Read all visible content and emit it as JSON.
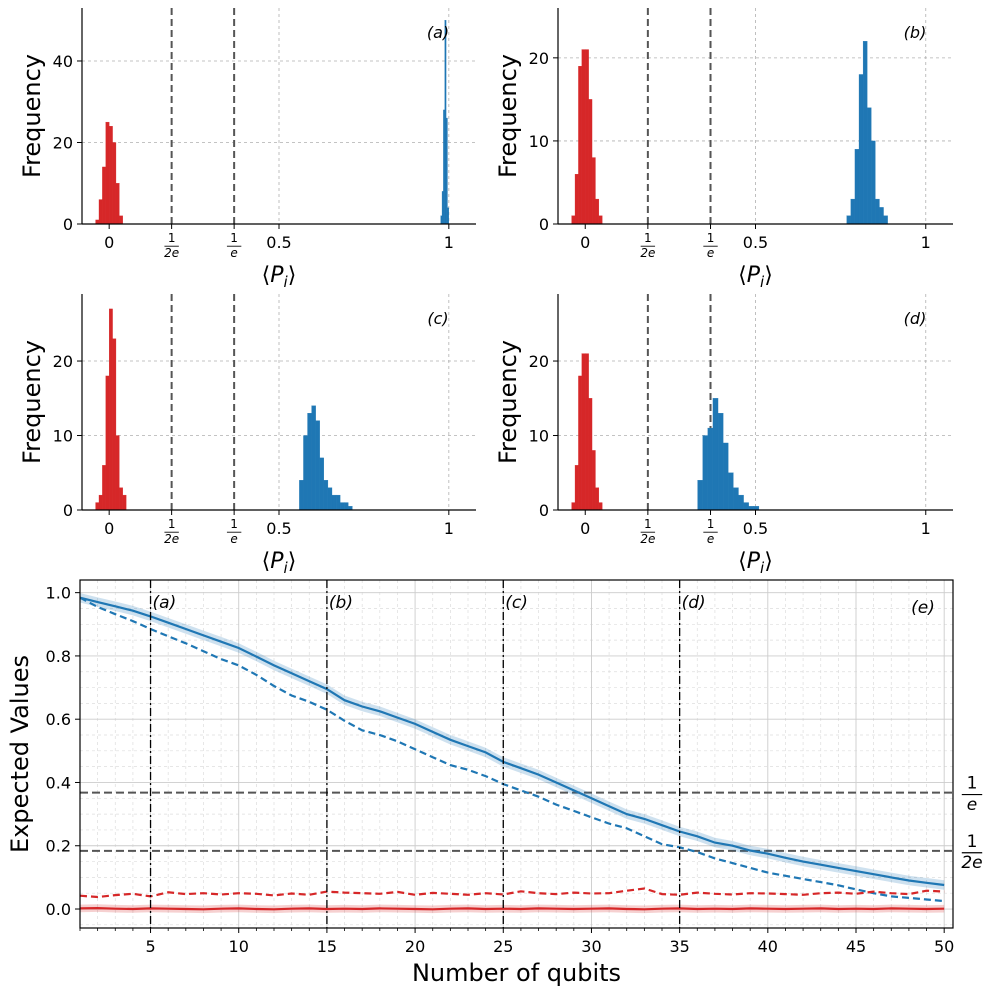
{
  "colors": {
    "blue": "#1f77b4",
    "red": "#d62728",
    "refline": "#555555",
    "grid": "#b0b0b0"
  },
  "chart_data": [
    {
      "type": "bar",
      "panel": "(a)",
      "xlabel": "⟨P_i⟩",
      "ylabel": "Frequency",
      "xlim": [
        -0.08,
        1.08
      ],
      "ylim": [
        0,
        53
      ],
      "yticks": [
        0,
        20,
        40
      ],
      "xticks": [
        {
          "v": 0,
          "t": "0"
        },
        {
          "v": 0.1839,
          "t": "1/2e"
        },
        {
          "v": 0.3679,
          "t": "1/e"
        },
        {
          "v": 0.5,
          "t": "0.5"
        },
        {
          "v": 1,
          "t": "1"
        }
      ],
      "ref_lines": [
        0.1839,
        0.3679
      ],
      "series": [
        {
          "name": "red",
          "bin_width": 0.01,
          "bins": [
            -0.035,
            -0.025,
            -0.015,
            -0.005,
            0.005,
            0.015,
            0.025,
            0.035
          ],
          "values": [
            1,
            6,
            14,
            25,
            24,
            20,
            10,
            2
          ]
        },
        {
          "name": "blue",
          "bin_width": 0.004,
          "bins": [
            0.978,
            0.982,
            0.986,
            0.99,
            0.994,
            0.998
          ],
          "values": [
            2,
            8,
            28,
            50,
            26,
            4
          ]
        }
      ]
    },
    {
      "type": "bar",
      "panel": "(b)",
      "xlabel": "⟨P_i⟩",
      "ylabel": "Frequency",
      "xlim": [
        -0.08,
        1.08
      ],
      "ylim": [
        0,
        26
      ],
      "yticks": [
        0,
        10,
        20
      ],
      "xticks": [
        {
          "v": 0,
          "t": "0"
        },
        {
          "v": 0.1839,
          "t": "1/2e"
        },
        {
          "v": 0.3679,
          "t": "1/e"
        },
        {
          "v": 0.5,
          "t": "0.5"
        },
        {
          "v": 1,
          "t": "1"
        }
      ],
      "ref_lines": [
        0.1839,
        0.3679
      ],
      "series": [
        {
          "name": "red",
          "bin_width": 0.01,
          "bins": [
            -0.035,
            -0.025,
            -0.015,
            -0.005,
            0.005,
            0.015,
            0.025,
            0.035,
            0.045
          ],
          "values": [
            1,
            6,
            19,
            21,
            21,
            15,
            8,
            3,
            1
          ]
        },
        {
          "name": "blue",
          "bin_width": 0.012,
          "bins": [
            0.774,
            0.786,
            0.798,
            0.81,
            0.822,
            0.834,
            0.846,
            0.858,
            0.87,
            0.882
          ],
          "values": [
            1,
            3,
            9,
            18,
            22,
            14,
            10,
            3,
            2,
            1
          ]
        }
      ]
    },
    {
      "type": "bar",
      "panel": "(c)",
      "xlabel": "⟨P_i⟩",
      "ylabel": "Frequency",
      "xlim": [
        -0.08,
        1.08
      ],
      "ylim": [
        0,
        29
      ],
      "yticks": [
        0,
        10,
        20
      ],
      "xticks": [
        {
          "v": 0,
          "t": "0"
        },
        {
          "v": 0.1839,
          "t": "1/2e"
        },
        {
          "v": 0.3679,
          "t": "1/e"
        },
        {
          "v": 0.5,
          "t": "0.5"
        },
        {
          "v": 1,
          "t": "1"
        }
      ],
      "ref_lines": [
        0.1839,
        0.3679
      ],
      "series": [
        {
          "name": "red",
          "bin_width": 0.01,
          "bins": [
            -0.035,
            -0.025,
            -0.015,
            -0.005,
            0.005,
            0.015,
            0.025,
            0.035,
            0.045
          ],
          "values": [
            1,
            2,
            6,
            18,
            27,
            23,
            10,
            3,
            2
          ]
        },
        {
          "name": "blue",
          "bin_width": 0.012,
          "bins": [
            0.566,
            0.578,
            0.59,
            0.602,
            0.614,
            0.626,
            0.638,
            0.65,
            0.662,
            0.674,
            0.686,
            0.698,
            0.71
          ],
          "values": [
            4,
            10,
            13,
            14,
            12,
            7,
            4,
            3,
            2,
            2,
            1,
            1,
            0.5
          ]
        }
      ]
    },
    {
      "type": "bar",
      "panel": "(d)",
      "xlabel": "⟨P_i⟩",
      "ylabel": "Frequency",
      "xlim": [
        -0.08,
        1.08
      ],
      "ylim": [
        0,
        29
      ],
      "yticks": [
        0,
        10,
        20
      ],
      "xticks": [
        {
          "v": 0,
          "t": "0"
        },
        {
          "v": 0.1839,
          "t": "1/2e"
        },
        {
          "v": 0.3679,
          "t": "1/e"
        },
        {
          "v": 0.5,
          "t": "0.5"
        },
        {
          "v": 1,
          "t": "1"
        }
      ],
      "ref_lines": [
        0.1839,
        0.3679
      ],
      "series": [
        {
          "name": "red",
          "bin_width": 0.01,
          "bins": [
            -0.035,
            -0.025,
            -0.015,
            -0.005,
            0.005,
            0.015,
            0.025,
            0.035,
            0.045
          ],
          "values": [
            1,
            6,
            18,
            21,
            21,
            15,
            8,
            3,
            1
          ]
        },
        {
          "name": "blue",
          "bin_width": 0.015,
          "bins": [
            0.3375,
            0.3525,
            0.3675,
            0.3825,
            0.3975,
            0.4125,
            0.4275,
            0.4425,
            0.4575,
            0.4725,
            0.4875,
            0.5025
          ],
          "values": [
            4,
            10,
            11,
            15,
            13,
            9,
            5,
            3,
            2,
            1,
            0.5,
            0.5
          ]
        }
      ]
    },
    {
      "type": "line",
      "panel": "(e)",
      "xlabel": "Number of qubits",
      "ylabel": "Expected Values",
      "xlim": [
        1,
        50.5
      ],
      "ylim": [
        -0.06,
        1.04
      ],
      "xticks": [
        5,
        10,
        15,
        20,
        25,
        30,
        35,
        40,
        45,
        50
      ],
      "yticks": [
        0.0,
        0.2,
        0.4,
        0.6,
        0.8,
        1.0
      ],
      "vlines": [
        {
          "x": 5,
          "label": "(a)"
        },
        {
          "x": 15,
          "label": "(b)"
        },
        {
          "x": 25,
          "label": "(c)"
        },
        {
          "x": 35,
          "label": "(d)"
        }
      ],
      "hlines": [
        {
          "y": 0.3679,
          "label_num": "1",
          "label_den": "e"
        },
        {
          "y": 0.1839,
          "label_num": "1",
          "label_den": "2e"
        }
      ],
      "x": [
        1,
        2,
        3,
        4,
        5,
        6,
        7,
        8,
        9,
        10,
        11,
        12,
        13,
        14,
        15,
        16,
        17,
        18,
        19,
        20,
        21,
        22,
        23,
        24,
        25,
        26,
        27,
        28,
        29,
        30,
        31,
        32,
        33,
        34,
        35,
        36,
        37,
        38,
        39,
        40,
        41,
        42,
        43,
        44,
        45,
        46,
        47,
        48,
        49,
        50
      ],
      "series": [
        {
          "name": "blue-solid",
          "color": "blue",
          "style": "solid",
          "band": 0.015,
          "values": [
            0.984,
            0.97,
            0.957,
            0.943,
            0.925,
            0.905,
            0.885,
            0.865,
            0.845,
            0.825,
            0.798,
            0.77,
            0.745,
            0.72,
            0.695,
            0.66,
            0.64,
            0.625,
            0.605,
            0.585,
            0.56,
            0.535,
            0.515,
            0.495,
            0.465,
            0.445,
            0.425,
            0.4,
            0.375,
            0.35,
            0.325,
            0.3,
            0.285,
            0.265,
            0.245,
            0.23,
            0.21,
            0.2,
            0.185,
            0.175,
            0.162,
            0.15,
            0.14,
            0.13,
            0.12,
            0.11,
            0.1,
            0.09,
            0.083,
            0.076
          ]
        },
        {
          "name": "blue-dashed",
          "color": "blue",
          "style": "dashed",
          "values": [
            0.984,
            0.955,
            0.932,
            0.91,
            0.885,
            0.862,
            0.84,
            0.815,
            0.79,
            0.77,
            0.74,
            0.705,
            0.675,
            0.655,
            0.63,
            0.595,
            0.565,
            0.55,
            0.53,
            0.505,
            0.48,
            0.455,
            0.44,
            0.42,
            0.395,
            0.375,
            0.355,
            0.33,
            0.31,
            0.29,
            0.27,
            0.255,
            0.23,
            0.205,
            0.195,
            0.18,
            0.16,
            0.145,
            0.13,
            0.115,
            0.105,
            0.095,
            0.085,
            0.075,
            0.062,
            0.05,
            0.04,
            0.035,
            0.03,
            0.025
          ]
        },
        {
          "name": "red-solid",
          "color": "red",
          "style": "solid",
          "band": 0.012,
          "values": [
            0.002,
            0.003,
            0.001,
            0.0,
            0.002,
            0.001,
            0.0,
            -0.001,
            0.001,
            0.002,
            0.0,
            -0.001,
            0.001,
            0.002,
            0.0,
            0.001,
            0.0,
            0.002,
            0.001,
            0.0,
            -0.001,
            0.001,
            0.002,
            0.0,
            0.001,
            0.0,
            0.002,
            0.001,
            0.0,
            0.001,
            0.002,
            0.0,
            -0.001,
            0.001,
            0.002,
            0.0,
            0.001,
            0.0,
            0.002,
            0.001,
            0.0,
            0.001,
            0.002,
            0.0,
            0.001,
            0.0,
            0.002,
            0.001,
            0.0,
            0.001
          ]
        },
        {
          "name": "red-dashed",
          "color": "red",
          "style": "dashed",
          "values": [
            0.042,
            0.038,
            0.044,
            0.048,
            0.04,
            0.053,
            0.047,
            0.05,
            0.046,
            0.05,
            0.048,
            0.043,
            0.049,
            0.045,
            0.055,
            0.052,
            0.05,
            0.048,
            0.054,
            0.045,
            0.051,
            0.048,
            0.045,
            0.05,
            0.046,
            0.056,
            0.05,
            0.047,
            0.052,
            0.049,
            0.05,
            0.058,
            0.065,
            0.047,
            0.045,
            0.052,
            0.048,
            0.046,
            0.05,
            0.049,
            0.047,
            0.045,
            0.05,
            0.052,
            0.048,
            0.055,
            0.05,
            0.047,
            0.058,
            0.055
          ]
        }
      ]
    }
  ]
}
